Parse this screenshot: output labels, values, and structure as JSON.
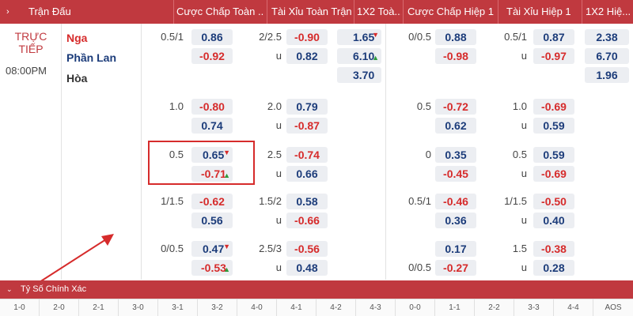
{
  "header": {
    "expand_icon": "chevron-right-icon",
    "columns": [
      "Trận Đấu",
      "Cược Chấp Toàn ...",
      "Tài Xỉu Toàn Trận",
      "1X2 Toà...",
      "Cược Chấp Hiệp 1",
      "Tài Xỉu Hiệp 1",
      "1X2 Hiệ..."
    ]
  },
  "match": {
    "status_line1": "TRỰC",
    "status_line2": "TIẾP",
    "time": "08:00PM",
    "home": "Nga",
    "away": "Phần Lan",
    "draw": "Hòa"
  },
  "rows": [
    {
      "ft_hcap": "0.5/1",
      "ft_hcap_home": "0.86",
      "ft_hcap_away": "-0.92",
      "ft_ou": "2/2.5",
      "ft_over": "-0.90",
      "ft_under_label": "u",
      "ft_under": "0.82",
      "ft_1x2": [
        "1.65",
        "6.10",
        "3.70"
      ],
      "h1_hcap": "0/0.5",
      "h1_hcap_home": "0.88",
      "h1_hcap_away": "-0.98",
      "h1_ou": "0.5/1",
      "h1_over": "0.87",
      "h1_under_label": "u",
      "h1_under": "-0.97",
      "h1_1x2": [
        "2.38",
        "6.70",
        "1.96"
      ]
    },
    {
      "ft_hcap": "1.0",
      "ft_hcap_home": "-0.80",
      "ft_hcap_away": "0.74",
      "ft_ou": "2.0",
      "ft_over": "0.79",
      "ft_under_label": "u",
      "ft_under": "-0.87",
      "h1_hcap": "0.5",
      "h1_hcap_home": "-0.72",
      "h1_hcap_away": "0.62",
      "h1_ou": "1.0",
      "h1_over": "-0.69",
      "h1_under_label": "u",
      "h1_under": "0.59"
    },
    {
      "ft_hcap": "0.5",
      "ft_hcap_home": "0.65",
      "ft_hcap_away": "-0.71",
      "ft_ou": "2.5",
      "ft_over": "-0.74",
      "ft_under_label": "u",
      "ft_under": "0.66",
      "h1_hcap": "0",
      "h1_hcap_home": "0.35",
      "h1_hcap_away": "-0.45",
      "h1_ou": "0.5",
      "h1_over": "0.59",
      "h1_under_label": "u",
      "h1_under": "-0.69"
    },
    {
      "ft_hcap": "1/1.5",
      "ft_hcap_home": "-0.62",
      "ft_hcap_away": "0.56",
      "ft_ou": "1.5/2",
      "ft_over": "0.58",
      "ft_under_label": "u",
      "ft_under": "-0.66",
      "h1_hcap": "0.5/1",
      "h1_hcap_home": "-0.46",
      "h1_hcap_away": "0.36",
      "h1_ou": "1/1.5",
      "h1_over": "-0.50",
      "h1_under_label": "u",
      "h1_under": "0.40"
    },
    {
      "ft_hcap": "0/0.5",
      "ft_hcap_home": "0.47",
      "ft_hcap_away": "-0.53",
      "ft_ou": "2.5/3",
      "ft_over": "-0.56",
      "ft_under_label": "u",
      "ft_under": "0.48",
      "h1_hcap_home": "0.17",
      "h1_hcap_away_line": "0/0.5",
      "h1_hcap_away": "-0.27",
      "h1_ou": "1.5",
      "h1_over": "-0.38",
      "h1_under_label": "u",
      "h1_under": "0.28"
    }
  ],
  "correct_score": {
    "title": "Tỷ Số Chính Xác",
    "scores": [
      "1-0",
      "2-0",
      "2-1",
      "3-0",
      "3-1",
      "3-2",
      "4-0",
      "4-1",
      "4-2",
      "4-3",
      "0-0",
      "1-1",
      "2-2",
      "3-3",
      "4-4",
      "AOS"
    ]
  },
  "colors": {
    "header_bg": "#c0393f",
    "positive_odds": "#1c3c7a",
    "negative_odds": "#d62b2b",
    "arrow_up": "#2d9b3b",
    "arrow_down": "#d62b2b"
  }
}
